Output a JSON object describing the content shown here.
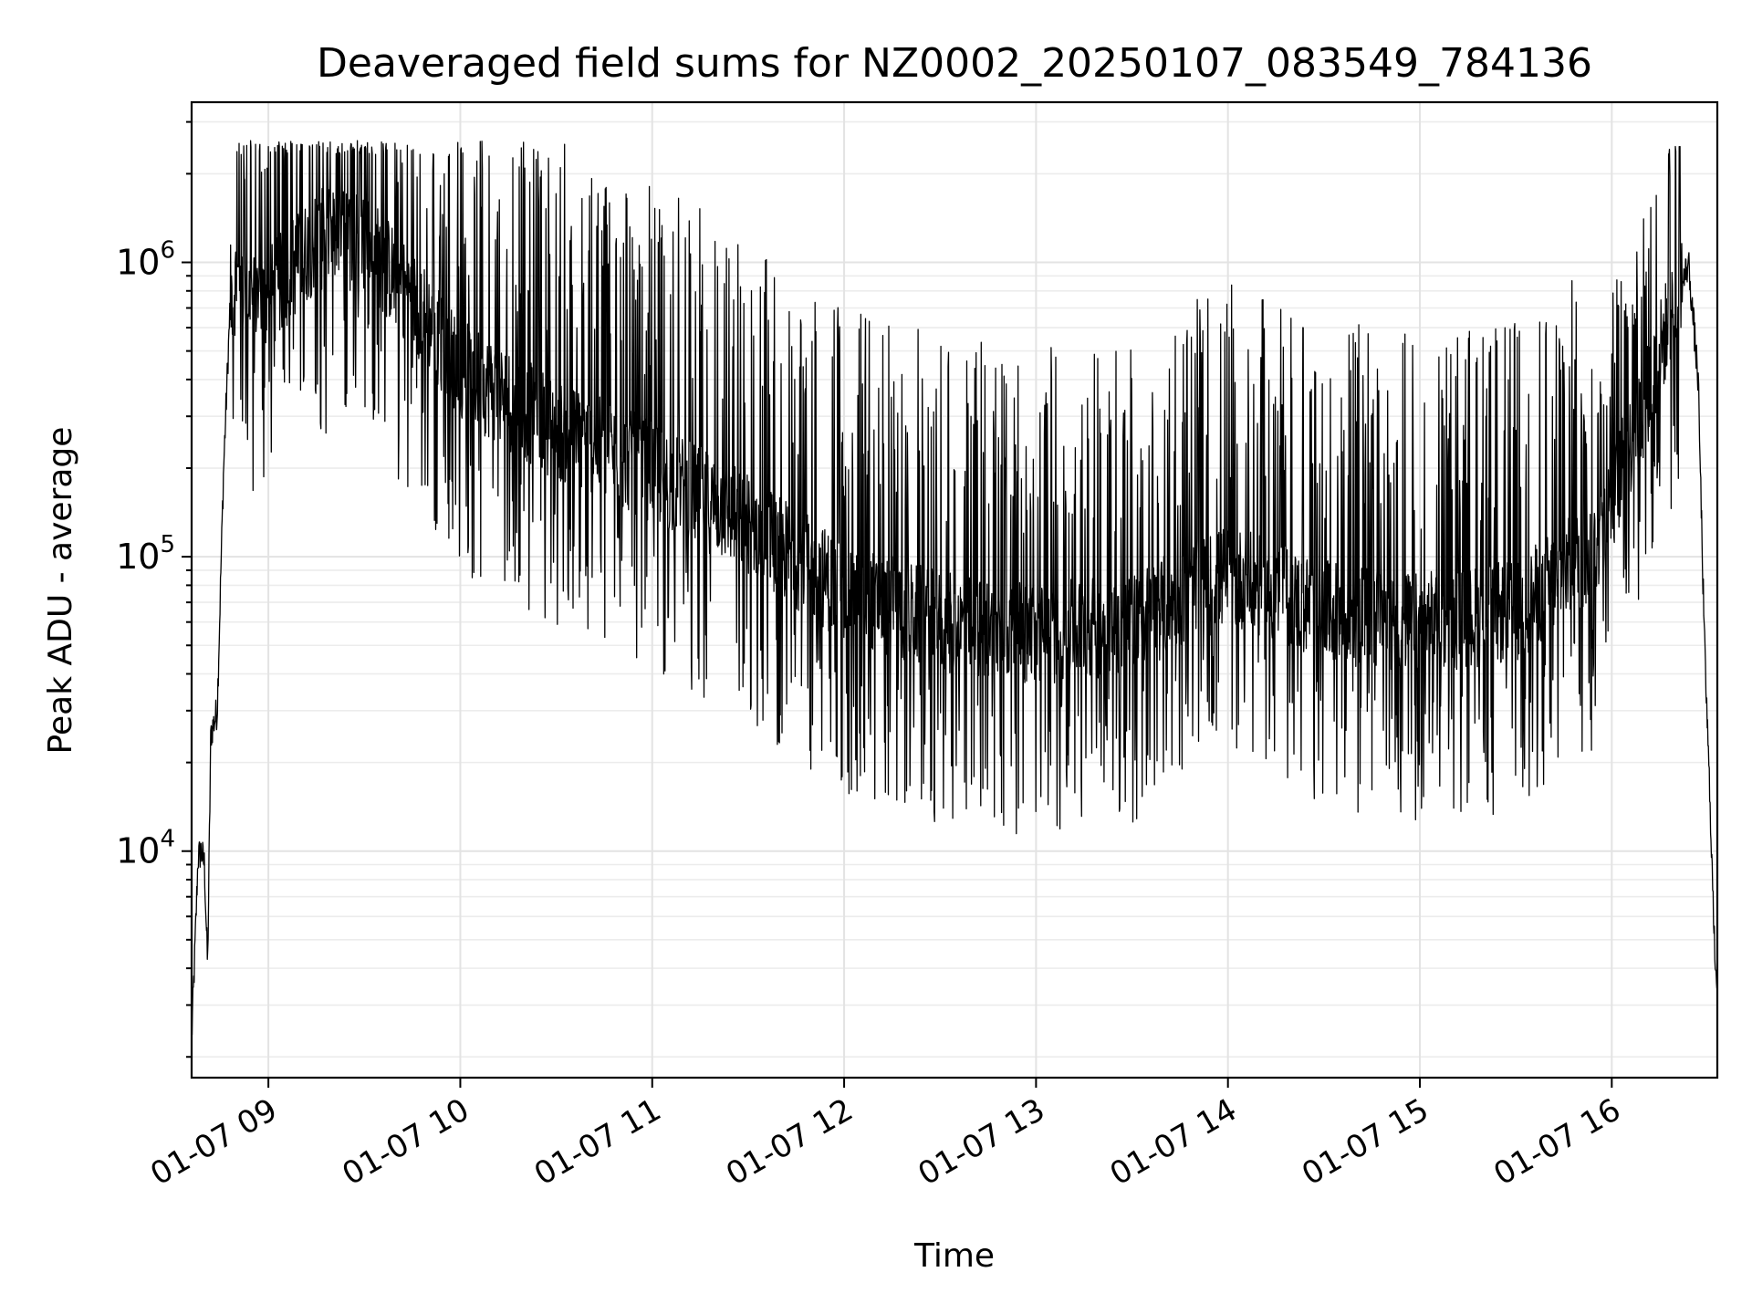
{
  "chart_data": {
    "type": "line",
    "title": "Deaveraged field sums for NZ0002_20250107_083549_784136",
    "xlabel": "Time",
    "ylabel": "Peak ADU - average",
    "yscale": "log",
    "grid": true,
    "xlim": [
      "01-07 08:36",
      "01-07 16:33"
    ],
    "ylim": [
      1700,
      3500000
    ],
    "xticks": [
      "01-07 09",
      "01-07 10",
      "01-07 11",
      "01-07 12",
      "01-07 13",
      "01-07 14",
      "01-07 15",
      "01-07 16"
    ],
    "yticks": [
      {
        "value": 10000,
        "base": "10",
        "exp": "4"
      },
      {
        "value": 100000,
        "base": "10",
        "exp": "5"
      },
      {
        "value": 1000000,
        "base": "10",
        "exp": "6"
      }
    ],
    "series": [
      {
        "color": "#000000",
        "x": [
          "01-07 08:36",
          "01-07 08:37",
          "01-07 08:38",
          "01-07 08:39",
          "01-07 08:40",
          "01-07 08:41",
          "01-07 08:42",
          "01-07 08:44",
          "01-07 08:46",
          "01-07 08:48",
          "01-07 08:50",
          "01-07 08:52",
          "01-07 08:55",
          "01-07 09:00",
          "01-07 09:15",
          "01-07 09:30",
          "01-07 09:45",
          "01-07 10:00",
          "01-07 10:30",
          "01-07 11:00",
          "01-07 11:30",
          "01-07 12:00",
          "01-07 12:30",
          "01-07 13:00",
          "01-07 13:30",
          "01-07 14:00",
          "01-07 14:30",
          "01-07 15:00",
          "01-07 15:30",
          "01-07 15:55",
          "01-07 16:10",
          "01-07 16:20",
          "01-07 16:24",
          "01-07 16:27",
          "01-07 16:29",
          "01-07 16:31",
          "01-07 16:32",
          "01-07 16:33"
        ],
        "y": [
          2300,
          4500,
          9500,
          10000,
          9000,
          4000,
          25000,
          30000,
          200000,
          700000,
          800000,
          750000,
          700000,
          700000,
          1100000,
          1100000,
          700000,
          400000,
          250000,
          180000,
          120000,
          70000,
          55000,
          50000,
          55000,
          80000,
          60000,
          55000,
          60000,
          100000,
          300000,
          700000,
          1000000,
          400000,
          50000,
          12000,
          5000,
          3500
        ]
      }
    ]
  }
}
